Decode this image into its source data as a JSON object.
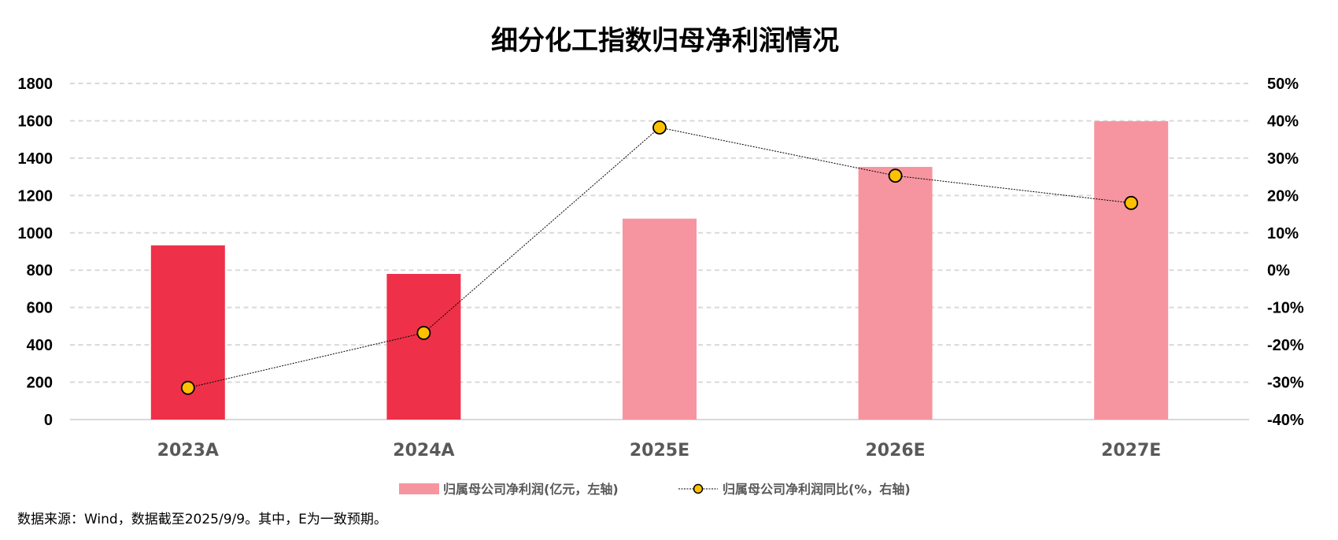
{
  "chart_data": {
    "type": "bar",
    "title": "细分化工指数归母净利润情况",
    "categories": [
      "2023A",
      "2024A",
      "2025E",
      "2026E",
      "2027E"
    ],
    "series": [
      {
        "name": "归属母公司净利润(亿元，左轴)",
        "type": "bar",
        "axis": "left",
        "values": [
          933,
          780,
          1076,
          1353,
          1598
        ],
        "colors": [
          "#ee3049",
          "#ee3049",
          "#f6959f",
          "#f6959f",
          "#f6959f"
        ]
      },
      {
        "name": "归属母公司净利润同比(%，右轴)",
        "type": "line",
        "axis": "right",
        "values": [
          -31.5,
          -16.8,
          38.2,
          25.3,
          18.0
        ],
        "marker_color": "#ffc000",
        "line_color": "#000000"
      }
    ],
    "left_axis": {
      "ylim": [
        0,
        1800
      ],
      "ticks": [
        "0",
        "200",
        "400",
        "600",
        "800",
        "1000",
        "1200",
        "1400",
        "1600",
        "1800"
      ]
    },
    "right_axis": {
      "ylim": [
        -40,
        50
      ],
      "ticks": [
        "-40%",
        "-30%",
        "-20%",
        "-10%",
        "0%",
        "10%",
        "20%",
        "30%",
        "40%",
        "50%"
      ]
    },
    "grid": true,
    "legend_placement": "bottom-center",
    "legend_swatch_color": "#f6959f",
    "footnote": "数据来源：Wind，数据截至2025/9/9。其中，E为一致预期。"
  }
}
